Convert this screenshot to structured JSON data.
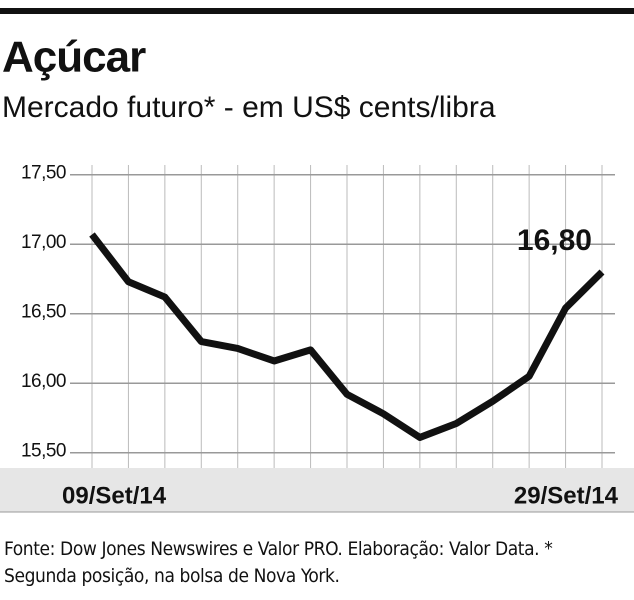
{
  "chart_data": {
    "type": "line",
    "title": "Açúcar",
    "subtitle": "Mercado futuro* - em US$ cents/libra",
    "categories": [
      "09/Set/14",
      null,
      null,
      null,
      null,
      null,
      null,
      null,
      null,
      null,
      null,
      null,
      null,
      null,
      "29/Set/14"
    ],
    "series": [
      {
        "name": "Açúcar",
        "color": "#111111",
        "values": [
          17.07,
          16.73,
          16.62,
          16.3,
          16.25,
          16.16,
          16.24,
          15.92,
          15.78,
          15.61,
          15.71,
          15.87,
          16.05,
          16.54,
          16.8
        ],
        "value_labels": [
          null,
          null,
          null,
          null,
          null,
          null,
          null,
          null,
          null,
          null,
          null,
          null,
          null,
          null,
          "16,80"
        ]
      }
    ],
    "ylim": [
      15.39,
      17.57
    ],
    "yticks": [
      {
        "value": 15.5,
        "label": "15,50"
      },
      {
        "value": 16.0,
        "label": "16,00"
      },
      {
        "value": 16.5,
        "label": "16,50"
      },
      {
        "value": 17.0,
        "label": "17,00"
      },
      {
        "value": 17.5,
        "label": "17,50"
      }
    ],
    "grid": true,
    "source": "Fonte: Dow Jones Newswires e Valor PRO. Elaboração: Valor Data. * Segunda posição, na bolsa de Nova York."
  }
}
